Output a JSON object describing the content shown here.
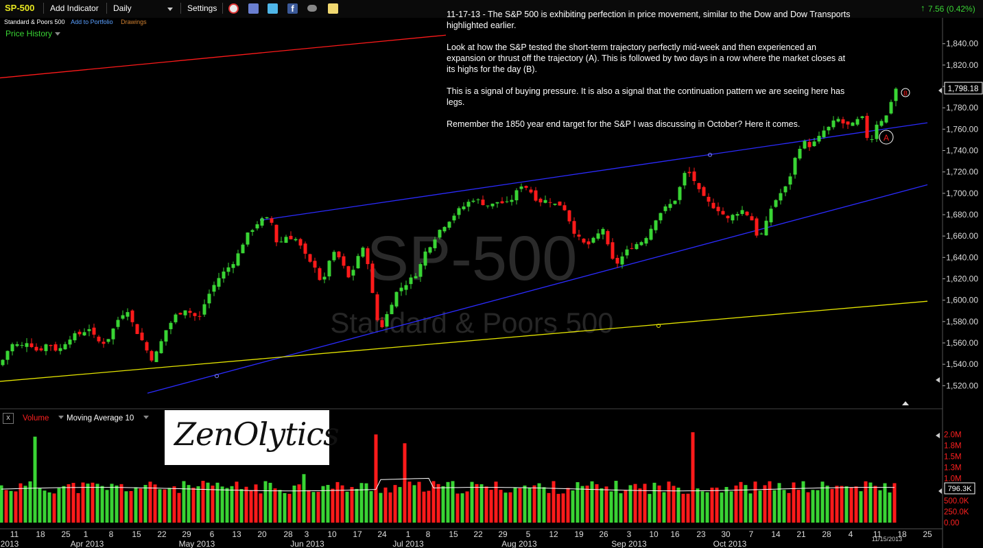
{
  "toolbar": {
    "symbol": "SP-500",
    "add_indicator": "Add Indicator",
    "period": "Daily",
    "settings": "Settings",
    "change": "7.56 (0.42%)",
    "up_color": "#39d434",
    "icons": [
      "alarm-clock-icon",
      "save-icon",
      "twitter-icon",
      "facebook-icon",
      "binoculars-icon",
      "notepad-icon"
    ]
  },
  "subheader": {
    "name": "Standard & Poors 500",
    "add_to_portfolio": "Add to Portfolio",
    "drawings": "Drawings",
    "price_history": "Price History"
  },
  "annotation": {
    "paragraphs": [
      "11-17-13 - The S&P 500 is exhibiting perfection in price movement, similar to the Dow and Dow Transports highlighted earlier.",
      "Look at how the S&P tested the short-term trajectory perfectly mid-week and then experienced an expansion or thrust off the trajectory (A). This is followed by two days in a row where the market closes at its highs for the day (B).",
      "This is a signal of buying pressure. It is also a signal that the continuation pattern we are seeing here has legs.",
      "Remember the 1850 year end target for the S&P I was discussing in October? Here it comes."
    ],
    "marker_a": "A",
    "marker_b": "B"
  },
  "watermark": {
    "symbol": "SP-500",
    "name": "Standard & Poors 500"
  },
  "volume_panel": {
    "volume_label": "Volume",
    "ma_label": "Moving Average 10",
    "close_box": "x",
    "logo_text": "ZenOlytics",
    "current_volume": "796.3K",
    "date_stamp": "11/15/2013"
  },
  "chart_data": {
    "type": "candlestick",
    "price_axis": {
      "ticks": [
        "1,520.00",
        "1,540.00",
        "1,560.00",
        "1,580.00",
        "1,600.00",
        "1,620.00",
        "1,640.00",
        "1,660.00",
        "1,680.00",
        "1,700.00",
        "1,720.00",
        "1,740.00",
        "1,760.00",
        "1,780.00",
        "1,800.00",
        "1,820.00",
        "1,840.00"
      ],
      "last_price": "1,798.18",
      "ylim": [
        1508,
        1852
      ]
    },
    "volume_axis": {
      "ticks": [
        "0.00",
        "250.0K",
        "500.0K",
        "750.0K",
        "1.0M",
        "1.3M",
        "1.5M",
        "1.8M",
        "2.0M"
      ],
      "ylim": [
        0,
        2100000
      ]
    },
    "x_axis": {
      "day_labels": [
        "11",
        "18",
        "25",
        "1",
        "8",
        "15",
        "22",
        "29",
        "6",
        "13",
        "20",
        "28",
        "3",
        "10",
        "17",
        "24",
        "1",
        "8",
        "15",
        "22",
        "29",
        "5",
        "12",
        "19",
        "26",
        "3",
        "10",
        "16",
        "23",
        "30",
        "7",
        "14",
        "21",
        "28",
        "4",
        "11",
        "18",
        "25"
      ],
      "month_labels": [
        "2013",
        "Apr 2013",
        "May 2013",
        "Jun 2013",
        "Jul 2013",
        "Aug 2013",
        "Sep 2013",
        "Oct 2013"
      ]
    },
    "trend_lines": [
      {
        "name": "upper-red",
        "color": "#ff1a1a",
        "points": [
          [
            0,
            1808
          ],
          [
            650,
            1848
          ]
        ]
      },
      {
        "name": "channel-top",
        "color": "#2b2bff",
        "points": [
          [
            382,
            1675
          ],
          [
            1352,
            1766
          ]
        ]
      },
      {
        "name": "channel-bottom",
        "color": "#2b2bff",
        "points": [
          [
            215,
            1513
          ],
          [
            1352,
            1708
          ]
        ]
      },
      {
        "name": "support-yellow",
        "color": "#e6e600",
        "points": [
          [
            0,
            1524
          ],
          [
            1352,
            1599
          ]
        ]
      }
    ],
    "colors": {
      "up": "#39d434",
      "down": "#ff1a1a",
      "ma": "#ffffff",
      "axis": "#dddddd"
    }
  }
}
